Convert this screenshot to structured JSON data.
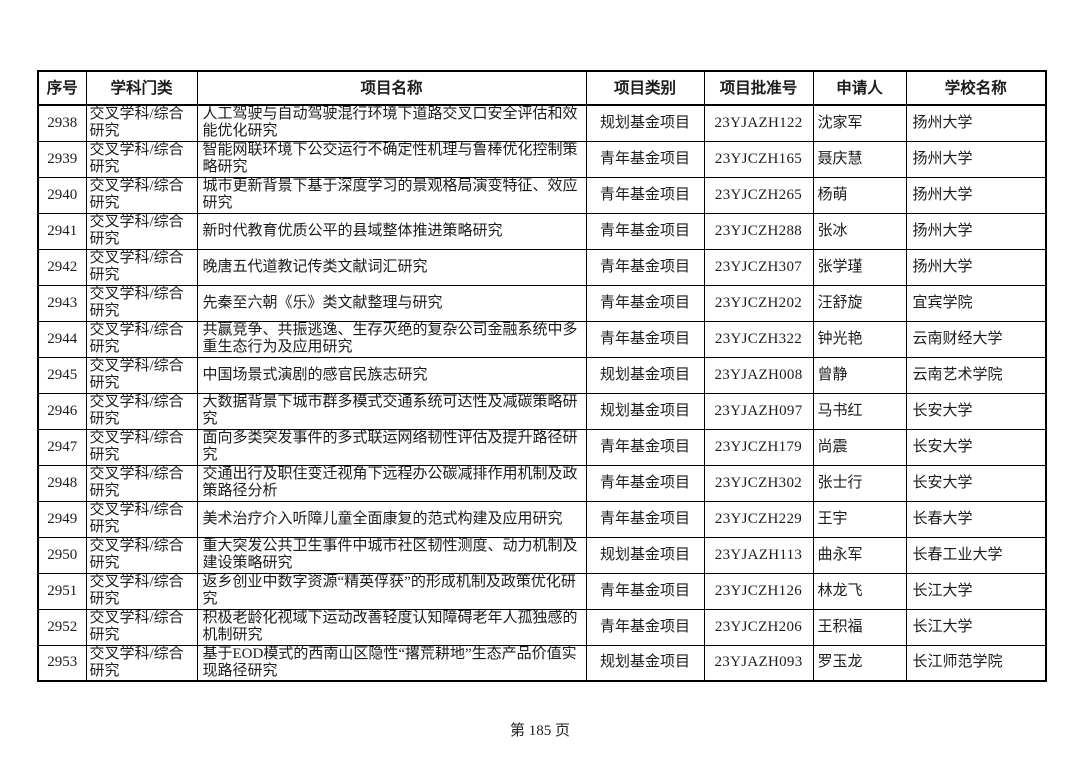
{
  "page": {
    "footer": "第 185 页"
  },
  "table": {
    "headers": [
      "序号",
      "学科门类",
      "项目名称",
      "项目类别",
      "项目批准号",
      "申请人",
      "学校名称"
    ],
    "rows": [
      {
        "seq": "2938",
        "discipline": "交叉学科/综合研究",
        "title": "人工驾驶与自动驾驶混行环境下道路交叉口安全评估和效能优化研究",
        "category": "规划基金项目",
        "grant_no": "23YJAZH122",
        "applicant": "沈家军",
        "school": "扬州大学"
      },
      {
        "seq": "2939",
        "discipline": "交叉学科/综合研究",
        "title": "智能网联环境下公交运行不确定性机理与鲁棒优化控制策略研究",
        "category": "青年基金项目",
        "grant_no": "23YJCZH165",
        "applicant": "聂庆慧",
        "school": "扬州大学"
      },
      {
        "seq": "2940",
        "discipline": "交叉学科/综合研究",
        "title": "城市更新背景下基于深度学习的景观格局演变特征、效应研究",
        "category": "青年基金项目",
        "grant_no": "23YJCZH265",
        "applicant": "杨萌",
        "school": "扬州大学"
      },
      {
        "seq": "2941",
        "discipline": "交叉学科/综合研究",
        "title": "新时代教育优质公平的县域整体推进策略研究",
        "category": "青年基金项目",
        "grant_no": "23YJCZH288",
        "applicant": "张冰",
        "school": "扬州大学"
      },
      {
        "seq": "2942",
        "discipline": "交叉学科/综合研究",
        "title": "晚唐五代道教记传类文献词汇研究",
        "category": "青年基金项目",
        "grant_no": "23YJCZH307",
        "applicant": "张学瑾",
        "school": "扬州大学"
      },
      {
        "seq": "2943",
        "discipline": "交叉学科/综合研究",
        "title": "先秦至六朝《乐》类文献整理与研究",
        "category": "青年基金项目",
        "grant_no": "23YJCZH202",
        "applicant": "汪舒旋",
        "school": "宜宾学院"
      },
      {
        "seq": "2944",
        "discipline": "交叉学科/综合研究",
        "title": "共赢竞争、共振逃逸、生存灭绝的复杂公司金融系统中多重生态行为及应用研究",
        "category": "青年基金项目",
        "grant_no": "23YJCZH322",
        "applicant": "钟光艳",
        "school": "云南财经大学"
      },
      {
        "seq": "2945",
        "discipline": "交叉学科/综合研究",
        "title": "中国场景式演剧的感官民族志研究",
        "category": "规划基金项目",
        "grant_no": "23YJAZH008",
        "applicant": "曾静",
        "school": "云南艺术学院"
      },
      {
        "seq": "2946",
        "discipline": "交叉学科/综合研究",
        "title": "大数据背景下城市群多模式交通系统可达性及减碳策略研究",
        "category": "规划基金项目",
        "grant_no": "23YJAZH097",
        "applicant": "马书红",
        "school": "长安大学"
      },
      {
        "seq": "2947",
        "discipline": "交叉学科/综合研究",
        "title": "面向多类突发事件的多式联运网络韧性评估及提升路径研究",
        "category": "青年基金项目",
        "grant_no": "23YJCZH179",
        "applicant": "尚震",
        "school": "长安大学"
      },
      {
        "seq": "2948",
        "discipline": "交叉学科/综合研究",
        "title": "交通出行及职住变迁视角下远程办公碳减排作用机制及政策路径分析",
        "category": "青年基金项目",
        "grant_no": "23YJCZH302",
        "applicant": "张士行",
        "school": "长安大学"
      },
      {
        "seq": "2949",
        "discipline": "交叉学科/综合研究",
        "title": "美术治疗介入听障儿童全面康复的范式构建及应用研究",
        "category": "青年基金项目",
        "grant_no": "23YJCZH229",
        "applicant": "王宇",
        "school": "长春大学"
      },
      {
        "seq": "2950",
        "discipline": "交叉学科/综合研究",
        "title": "重大突发公共卫生事件中城市社区韧性测度、动力机制及建设策略研究",
        "category": "规划基金项目",
        "grant_no": "23YJAZH113",
        "applicant": "曲永军",
        "school": "长春工业大学"
      },
      {
        "seq": "2951",
        "discipline": "交叉学科/综合研究",
        "title": "返乡创业中数字资源“精英俘获”的形成机制及政策优化研究",
        "category": "青年基金项目",
        "grant_no": "23YJCZH126",
        "applicant": "林龙飞",
        "school": "长江大学"
      },
      {
        "seq": "2952",
        "discipline": "交叉学科/综合研究",
        "title": "积极老龄化视域下运动改善轻度认知障碍老年人孤独感的机制研究",
        "category": "青年基金项目",
        "grant_no": "23YJCZH206",
        "applicant": "王积福",
        "school": "长江大学"
      },
      {
        "seq": "2953",
        "discipline": "交叉学科/综合研究",
        "title": "基于EOD模式的西南山区隐性“撂荒耕地”生态产品价值实现路径研究",
        "category": "规划基金项目",
        "grant_no": "23YJAZH093",
        "applicant": "罗玉龙",
        "school": "长江师范学院"
      }
    ]
  }
}
